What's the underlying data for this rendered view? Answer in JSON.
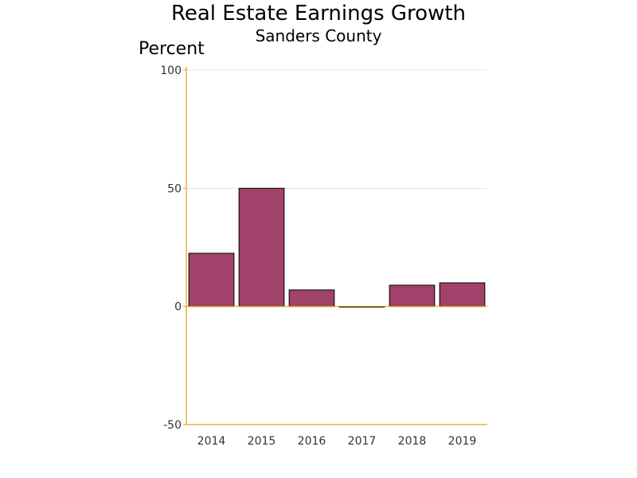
{
  "chart_data": {
    "type": "bar",
    "title": "Real Estate Earnings Growth",
    "subtitle": "Sanders County",
    "ylabel": "Percent",
    "xlabel": "",
    "categories": [
      "2014",
      "2015",
      "2016",
      "2017",
      "2018",
      "2019"
    ],
    "values": [
      22.5,
      50,
      7,
      -0.3,
      9,
      10
    ],
    "ylim": [
      -50,
      100
    ],
    "yticks": [
      -50,
      0,
      50,
      100
    ],
    "grid": true,
    "bar_color": "#a0426a",
    "axis_color": "#e8a317",
    "grid_color": "#e6e6e6"
  }
}
